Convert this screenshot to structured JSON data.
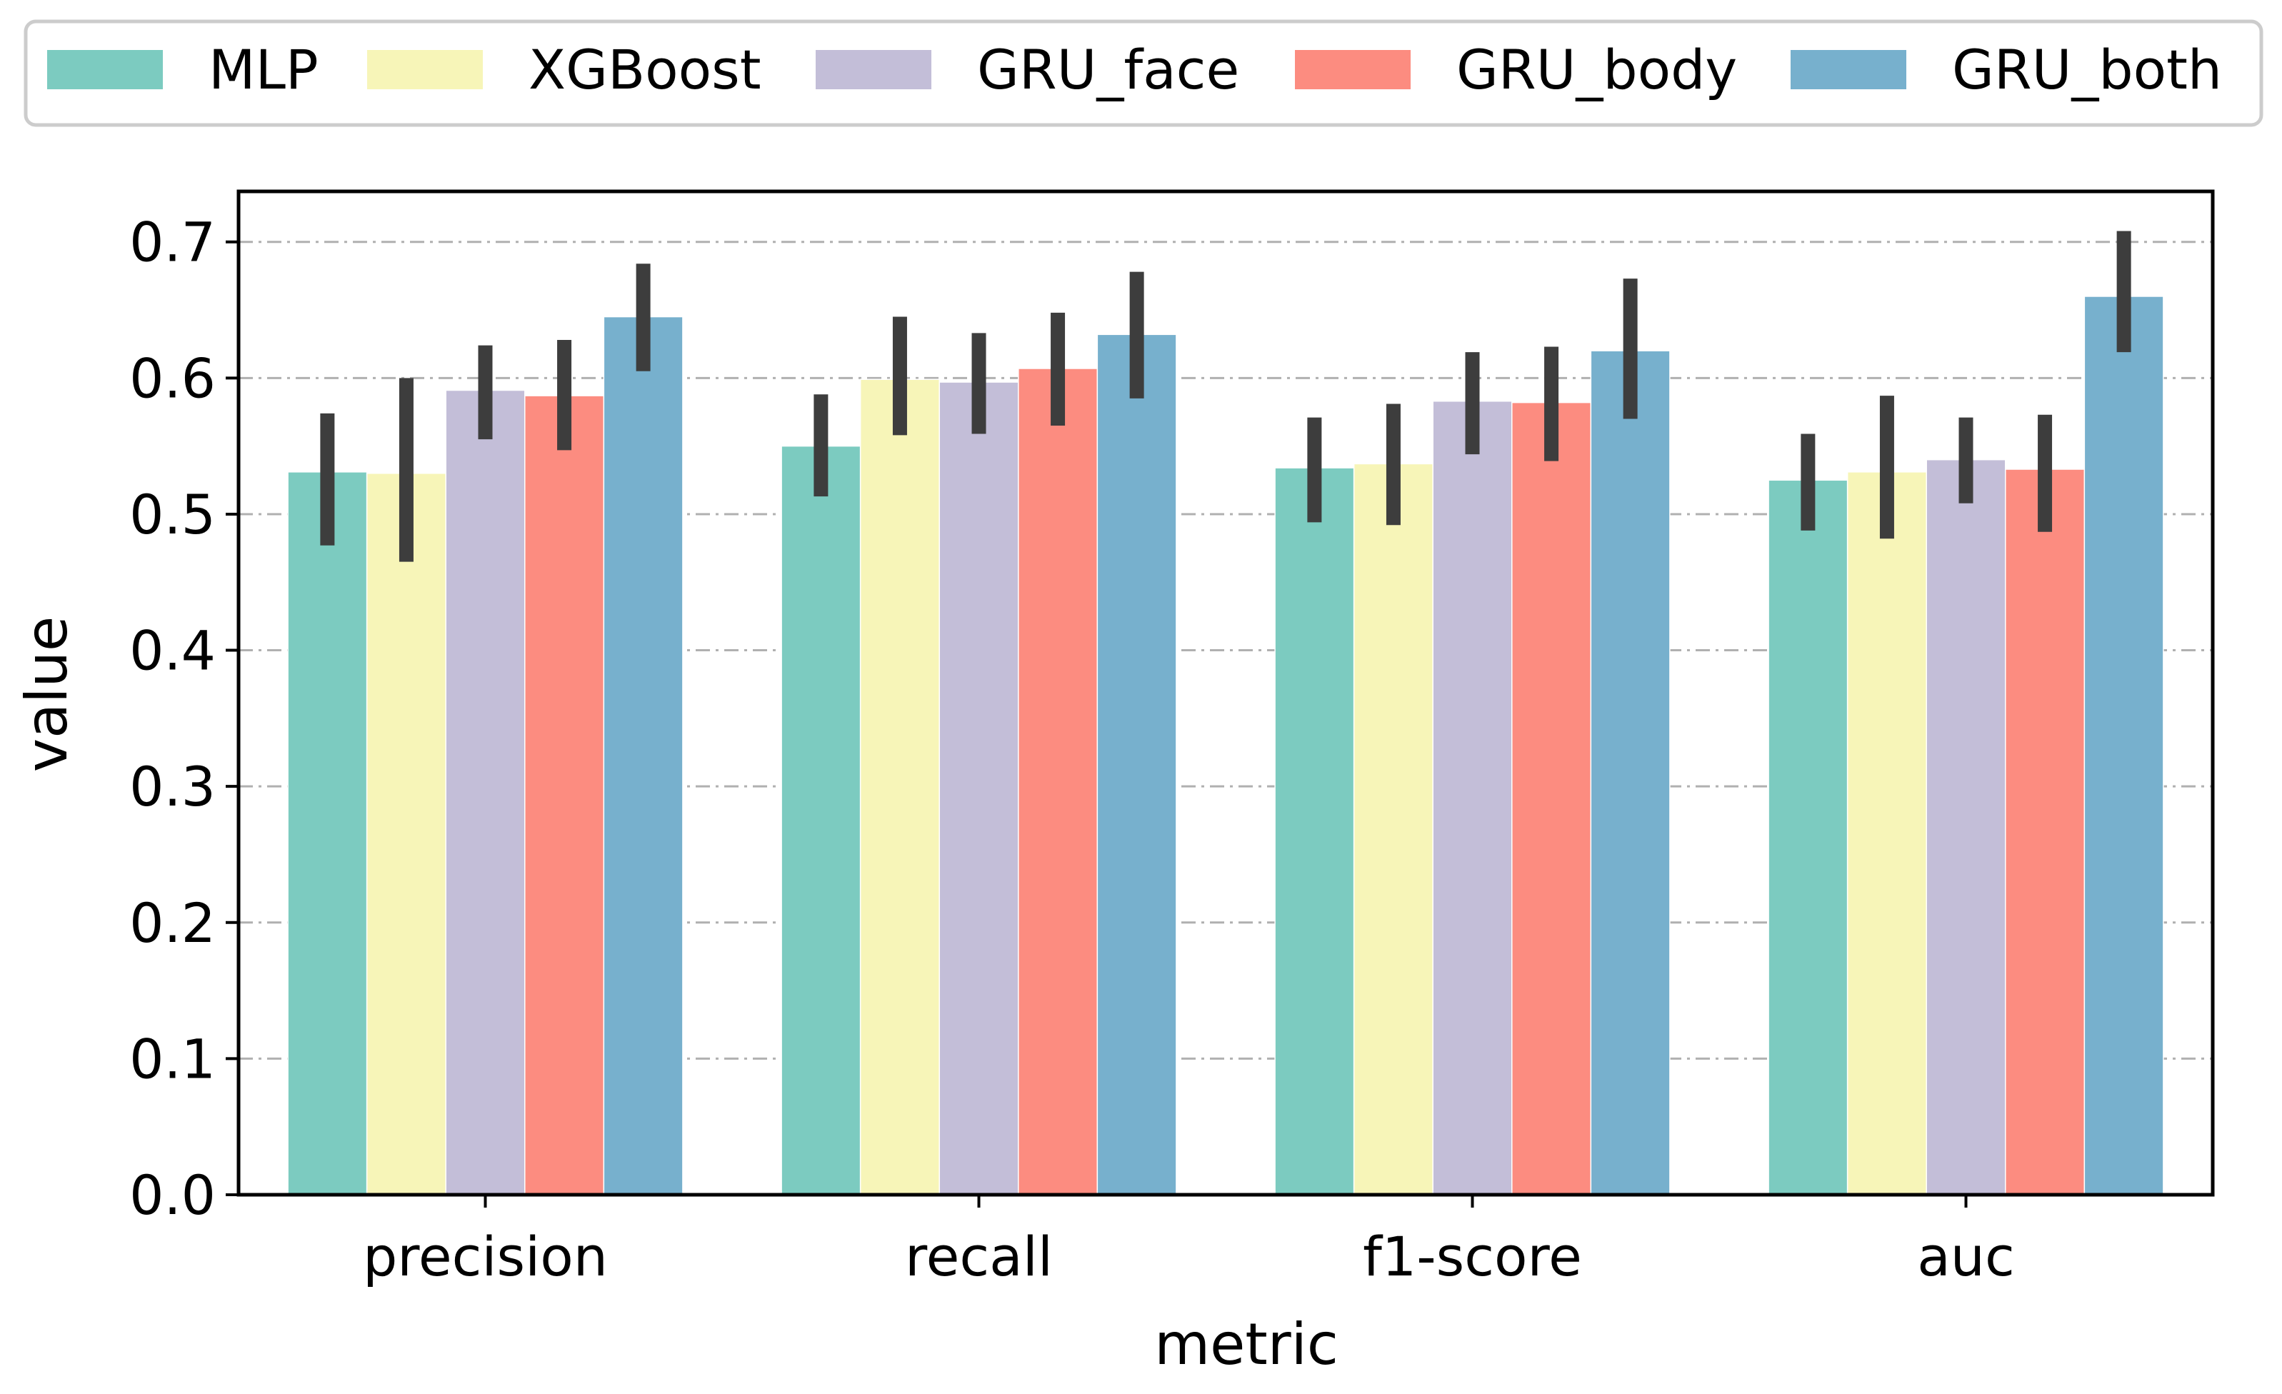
{
  "chart_data": {
    "type": "bar",
    "xlabel": "metric",
    "ylabel": "value",
    "ylim": [
      0,
      0.7371
    ],
    "yticks": [
      "0.0",
      "0.1",
      "0.2",
      "0.3",
      "0.4",
      "0.5",
      "0.6",
      "0.7"
    ],
    "grid": "horizontal, dash-dot",
    "legend_position": "top, above plot",
    "categories": [
      "precision",
      "recall",
      "f1-score",
      "auc"
    ],
    "series": [
      {
        "name": "MLP",
        "color": "#7ccbc0",
        "values": [
          0.531,
          0.55,
          0.534,
          0.525
        ],
        "err_low": [
          0.477,
          0.513,
          0.494,
          0.488
        ],
        "err_high": [
          0.574,
          0.588,
          0.571,
          0.559
        ]
      },
      {
        "name": "XGBoost",
        "color": "#f7f5b8",
        "values": [
          0.53,
          0.599,
          0.537,
          0.531
        ],
        "err_low": [
          0.465,
          0.558,
          0.492,
          0.482
        ],
        "err_high": [
          0.6,
          0.645,
          0.581,
          0.587
        ]
      },
      {
        "name": "GRU_face",
        "color": "#c3bed8",
        "values": [
          0.591,
          0.597,
          0.583,
          0.54
        ],
        "err_low": [
          0.555,
          0.559,
          0.544,
          0.508
        ],
        "err_high": [
          0.624,
          0.633,
          0.619,
          0.571
        ]
      },
      {
        "name": "GRU_body",
        "color": "#fc8c80",
        "values": [
          0.587,
          0.607,
          0.582,
          0.533
        ],
        "err_low": [
          0.547,
          0.565,
          0.539,
          0.487
        ],
        "err_high": [
          0.628,
          0.648,
          0.623,
          0.573
        ]
      },
      {
        "name": "GRU_both",
        "color": "#77b0cd",
        "values": [
          0.645,
          0.632,
          0.62,
          0.66
        ],
        "err_low": [
          0.605,
          0.585,
          0.57,
          0.619
        ],
        "err_high": [
          0.684,
          0.678,
          0.673,
          0.708
        ]
      }
    ]
  }
}
